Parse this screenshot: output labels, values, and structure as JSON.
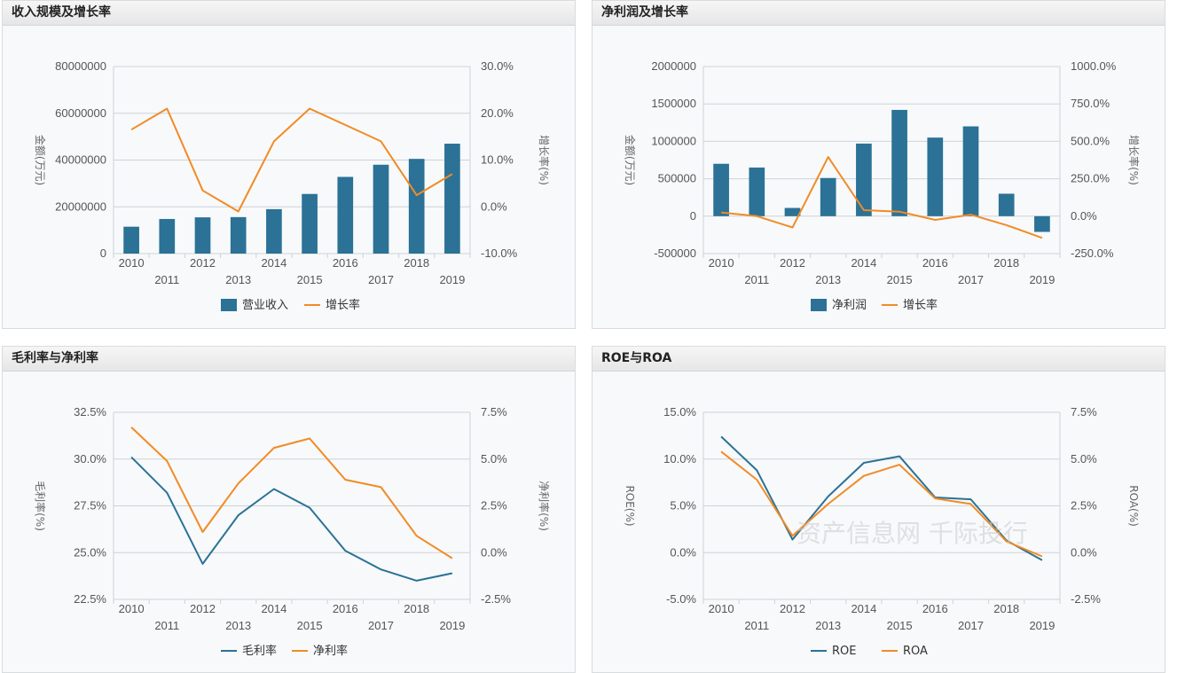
{
  "colors": {
    "bar": "#2b7296",
    "orange": "#f28b24",
    "blue_line": "#2b7296",
    "grid": "#cfd3d6"
  },
  "chart_data": [
    {
      "id": "c1",
      "type": "bar",
      "title": "收入规模及增长率",
      "categories": [
        "2010",
        "2011",
        "2012",
        "2013",
        "2014",
        "2015",
        "2016",
        "2017",
        "2018",
        "2019"
      ],
      "left_axis": {
        "ticks": [
          0,
          20000000,
          40000000,
          60000000,
          80000000
        ],
        "labels": [
          "0",
          "20000000",
          "40000000",
          "60000000",
          "80000000"
        ],
        "min": 0,
        "max": 80000000
      },
      "right_axis": {
        "min": -10,
        "max": 30,
        "ticks": [
          -10,
          0,
          10,
          20,
          30
        ],
        "labels": [
          "-10.0%",
          "0.0%",
          "10.0%",
          "20.0%",
          "30.0%"
        ]
      },
      "ylabel": "金额(万元)",
      "y2label": "增长率(%)",
      "series": [
        {
          "name": "营业收入",
          "kind": "bar",
          "axis": "left",
          "color": "#2b7296",
          "values": [
            11500000,
            14800000,
            15500000,
            15600000,
            19000000,
            25500000,
            32800000,
            38000000,
            40500000,
            47000000
          ]
        },
        {
          "name": "增长率",
          "kind": "line",
          "axis": "right",
          "color": "#f28b24",
          "values": [
            16.5,
            21.0,
            3.5,
            -1.0,
            14.0,
            21.0,
            17.5,
            14.0,
            2.5,
            7.0
          ]
        }
      ],
      "legend": [
        "营业收入",
        "增长率"
      ]
    },
    {
      "id": "c2",
      "type": "bar",
      "title": "净利润及增长率",
      "categories": [
        "2010",
        "2011",
        "2012",
        "2013",
        "2014",
        "2015",
        "2016",
        "2017",
        "2018",
        "2019"
      ],
      "left_axis": {
        "ticks": [
          -500000,
          0,
          500000,
          1000000,
          1500000,
          2000000
        ],
        "labels": [
          "-500000",
          "0",
          "500000",
          "1000000",
          "1500000",
          "2000000"
        ],
        "min": -500000,
        "max": 2000000
      },
      "right_axis": {
        "min": -250,
        "max": 1000,
        "ticks": [
          -250,
          0,
          250,
          500,
          750,
          1000
        ],
        "labels": [
          "-250.0%",
          "0.0%",
          "250.0%",
          "500.0%",
          "750.0%",
          "1000.0%"
        ]
      },
      "ylabel": "金额(万元)",
      "y2label": "增长率(%)",
      "series": [
        {
          "name": "净利润",
          "kind": "bar",
          "axis": "left",
          "color": "#2b7296",
          "values": [
            700000,
            650000,
            110000,
            510000,
            970000,
            1420000,
            1050000,
            1200000,
            300000,
            -210000
          ]
        },
        {
          "name": "增长率",
          "kind": "line",
          "axis": "right",
          "color": "#f28b24",
          "values": [
            25,
            0,
            -75,
            395,
            40,
            30,
            -25,
            10,
            -60,
            -145
          ]
        }
      ],
      "legend": [
        "净利润",
        "增长率"
      ]
    },
    {
      "id": "c3",
      "type": "line",
      "title": "毛利率与净利率",
      "categories": [
        "2010",
        "2011",
        "2012",
        "2013",
        "2014",
        "2015",
        "2016",
        "2017",
        "2018",
        "2019"
      ],
      "left_axis": {
        "min": 22.5,
        "max": 32.5,
        "ticks": [
          22.5,
          25,
          27.5,
          30,
          32.5
        ],
        "labels": [
          "22.5%",
          "25.0%",
          "27.5%",
          "30.0%",
          "32.5%"
        ]
      },
      "right_axis": {
        "min": -2.5,
        "max": 7.5,
        "ticks": [
          -2.5,
          0,
          2.5,
          5,
          7.5
        ],
        "labels": [
          "-2.5%",
          "0.0%",
          "2.5%",
          "5.0%",
          "7.5%"
        ]
      },
      "ylabel": "毛利率(%)",
      "y2label": "净利率(%)",
      "series": [
        {
          "name": "毛利率",
          "kind": "line",
          "axis": "left",
          "color": "#2b7296",
          "values": [
            30.1,
            28.2,
            24.4,
            27.0,
            28.4,
            27.4,
            25.1,
            24.1,
            23.5,
            23.9
          ]
        },
        {
          "name": "净利率",
          "kind": "line",
          "axis": "right",
          "color": "#f28b24",
          "values": [
            6.7,
            4.9,
            1.1,
            3.7,
            5.6,
            6.1,
            3.9,
            3.5,
            0.9,
            -0.3
          ]
        }
      ],
      "legend": [
        "毛利率",
        "净利率"
      ]
    },
    {
      "id": "c4",
      "type": "line",
      "title": "ROE与ROA",
      "categories": [
        "2010",
        "2011",
        "2012",
        "2013",
        "2014",
        "2015",
        "2016",
        "2017",
        "2018",
        "2019"
      ],
      "left_axis": {
        "min": -5,
        "max": 15,
        "ticks": [
          -5,
          0,
          5,
          10,
          15
        ],
        "labels": [
          "-5.0%",
          "0.0%",
          "5.0%",
          "10.0%",
          "15.0%"
        ]
      },
      "right_axis": {
        "min": -2.5,
        "max": 7.5,
        "ticks": [
          -2.5,
          0,
          2.5,
          5,
          7.5
        ],
        "labels": [
          "-2.5%",
          "0.0%",
          "2.5%",
          "5.0%",
          "7.5%"
        ]
      },
      "ylabel": "ROE(%)",
      "y2label": "ROA(%)",
      "series": [
        {
          "name": "ROE",
          "kind": "line",
          "axis": "left",
          "color": "#2b7296",
          "values": [
            12.4,
            8.8,
            1.4,
            6.0,
            9.6,
            10.3,
            5.9,
            5.7,
            1.3,
            -0.8
          ]
        },
        {
          "name": "ROA",
          "kind": "line",
          "axis": "right",
          "color": "#f28b24",
          "values": [
            5.4,
            3.9,
            0.9,
            2.6,
            4.1,
            4.7,
            2.9,
            2.6,
            0.6,
            -0.2
          ]
        }
      ],
      "legend": [
        "ROE",
        "ROA"
      ],
      "watermark": "资产信息网 千际投行"
    }
  ]
}
